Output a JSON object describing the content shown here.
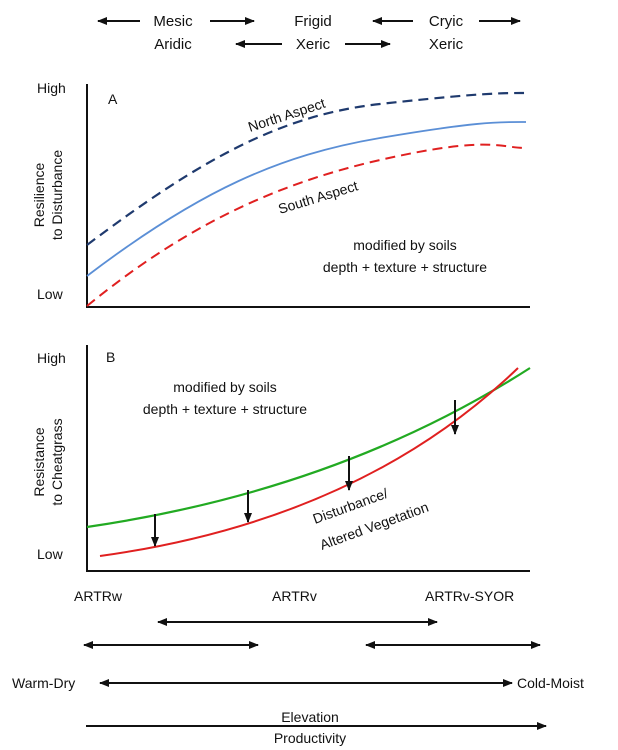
{
  "top_regimes": {
    "row1": [
      "Mesic",
      "Frigid",
      "Cryic"
    ],
    "row2": [
      "Aridic",
      "Xeric",
      "Xeric"
    ]
  },
  "panel_a": {
    "letter": "A",
    "y_high": "High",
    "y_low": "Low",
    "y_label_1": "Resilience",
    "y_label_2": "to Disturbance",
    "north_label": "North Aspect",
    "south_label": "South Aspect",
    "note_1": "modified by soils",
    "note_2": "depth + texture + structure"
  },
  "panel_b": {
    "letter": "B",
    "y_high": "High",
    "y_low": "Low",
    "y_label_1": "Resistance",
    "y_label_2": "to Cheatgrass",
    "note_1": "modified by soils",
    "note_2": "depth + texture + structure",
    "disturbance_1": "Disturbance/",
    "disturbance_2": "Altered Vegetation"
  },
  "vegetation": [
    "ARTRw",
    "ARTRv",
    "ARTRv-SYOR"
  ],
  "gradient": {
    "left": "Warm-Dry",
    "right": "Cold-Moist",
    "axis_1": "Elevation",
    "axis_2": "Productivity"
  },
  "colors": {
    "north": "#1f3a6e",
    "mid": "#5b8fd6",
    "south": "#e02020",
    "green": "#22aa22",
    "red": "#e02020"
  }
}
